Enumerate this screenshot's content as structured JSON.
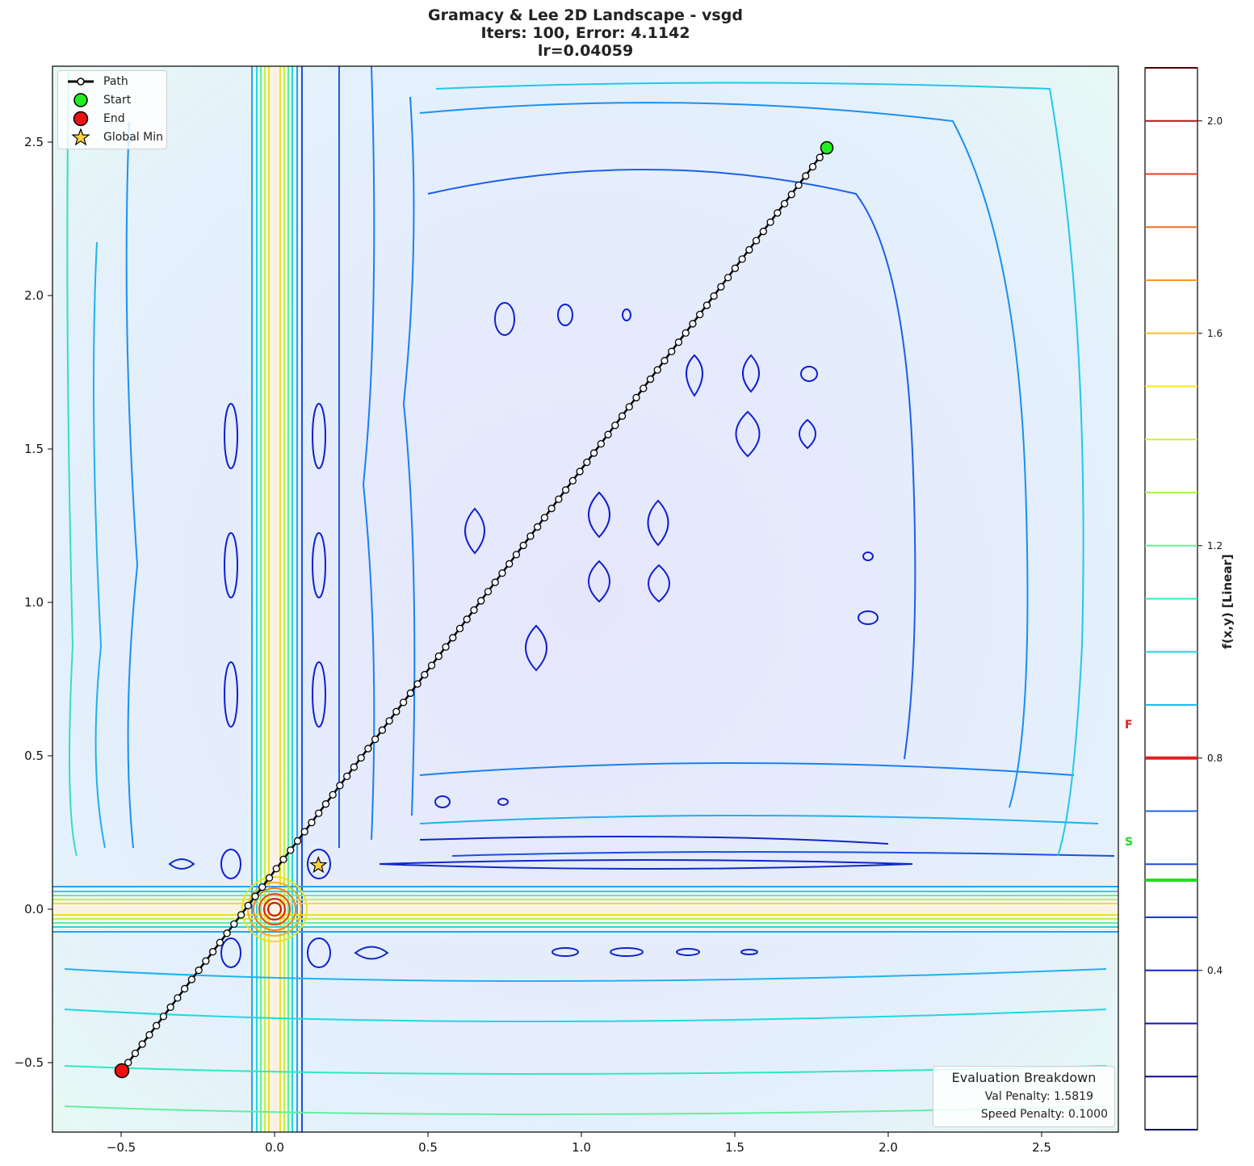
{
  "title": {
    "line1": "Gramacy & Lee 2D Landscape - vsgd",
    "line2": "Iters: 100, Error: 4.1142",
    "line3": "lr=0.04059"
  },
  "legend": {
    "items": [
      {
        "label": "Path",
        "icon": "line-with-circle-marker",
        "color": "#000000"
      },
      {
        "label": "Start",
        "icon": "green-circle",
        "color": "#22ee22"
      },
      {
        "label": "End",
        "icon": "red-circle",
        "color": "#ee1111"
      },
      {
        "label": "Global Min",
        "icon": "gold-star",
        "color": "#ffd23f"
      }
    ]
  },
  "evaluation": {
    "title": "Evaluation Breakdown",
    "val_penalty": "Val Penalty: 1.5819",
    "speed_penalty": "Speed Penalty: 0.1000"
  },
  "colorbar": {
    "label": "f(x,y) [Linear]",
    "ticks": [
      "2.0",
      "1.6",
      "1.2",
      "0.8",
      "0.4"
    ],
    "markers": [
      {
        "label": "F",
        "value": 0.8,
        "color": "#e0201c"
      },
      {
        "label": "S",
        "value": 0.57,
        "color": "#22dd22"
      }
    ]
  },
  "axes": {
    "xticks": [
      "−0.5",
      "0.0",
      "0.5",
      "1.0",
      "1.5",
      "2.0",
      "2.5"
    ],
    "yticks": [
      "−0.5",
      "0.0",
      "0.5",
      "1.0",
      "1.5",
      "2.0",
      "2.5"
    ]
  },
  "chart_data": {
    "type": "contour",
    "title": "Gramacy & Lee 2D Landscape - vsgd\nIters: 100, Error: 4.1142\nlr=0.04059",
    "xlabel": "",
    "ylabel": "",
    "xlim": [
      -0.72,
      2.75
    ],
    "ylim": [
      -0.73,
      2.75
    ],
    "xticks": [
      -0.5,
      0.0,
      0.5,
      1.0,
      1.5,
      2.0,
      2.5
    ],
    "yticks": [
      -0.5,
      0.0,
      0.5,
      1.0,
      1.5,
      2.0,
      2.5
    ],
    "colorbar": {
      "label": "f(x,y) [Linear]",
      "range": [
        0.1,
        2.1
      ],
      "ticks": [
        0.4,
        0.8,
        1.2,
        1.6,
        2.0
      ],
      "levels": [
        0.1,
        0.2,
        0.3,
        0.4,
        0.5,
        0.6,
        0.7,
        0.8,
        0.9,
        1.0,
        1.1,
        1.2,
        1.3,
        1.4,
        1.5,
        1.6,
        1.7,
        1.8,
        1.9,
        2.0,
        2.1
      ],
      "colormap": "jet",
      "highlight_levels": [
        {
          "label": "F",
          "value": 0.8,
          "color": "red"
        },
        {
          "label": "S",
          "value": 0.57,
          "color": "green"
        }
      ]
    },
    "series": [
      {
        "name": "Path",
        "type": "line+markers",
        "iterations": 100,
        "start": [
          1.8,
          2.48
        ],
        "end": [
          -0.5,
          -0.53
        ],
        "shape": "straight diagonal line from start to end"
      },
      {
        "name": "Start",
        "type": "scatter",
        "x": [
          1.8
        ],
        "y": [
          2.48
        ]
      },
      {
        "name": "End",
        "type": "scatter",
        "x": [
          -0.5
        ],
        "y": [
          -0.53
        ]
      },
      {
        "name": "Global Min",
        "type": "scatter",
        "marker": "star",
        "x": [
          0.143
        ],
        "y": [
          0.143
        ]
      }
    ],
    "annotations": [
      "Evaluation Breakdown",
      "Val Penalty: 1.5819",
      "Speed Penalty: 0.1000"
    ],
    "legend_position": "upper left",
    "grid": false
  }
}
